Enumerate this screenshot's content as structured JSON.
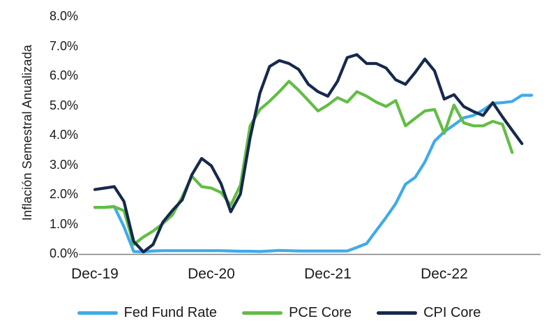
{
  "colors": {
    "background": "#ffffff",
    "axis_line": "#7f7f7f",
    "text": "#1a1a1a",
    "fed_fund_rate": "#3fabe8",
    "pce_core": "#63bd45",
    "cpi_core": "#16294d"
  },
  "chart_data": {
    "type": "line",
    "title": "",
    "xlabel": "",
    "ylabel": "Inflación Semestral Anualizada",
    "grid": false,
    "legend_position": "bottom",
    "ylim": [
      0,
      8
    ],
    "y_ticks": [
      "0.0%",
      "1.0%",
      "2.0%",
      "3.0%",
      "4.0%",
      "5.0%",
      "6.0%",
      "7.0%",
      "8.0%"
    ],
    "x_ticks": [
      {
        "label": "Dec-19",
        "month_index": 0
      },
      {
        "label": "Dec-20",
        "month_index": 12
      },
      {
        "label": "Dec-21",
        "month_index": 24
      },
      {
        "label": "Dec-22",
        "month_index": 36
      }
    ],
    "x_unit": "month",
    "months": [
      "Dec-19",
      "Jan-20",
      "Feb-20",
      "Mar-20",
      "Apr-20",
      "May-20",
      "Jun-20",
      "Jul-20",
      "Aug-20",
      "Sep-20",
      "Oct-20",
      "Nov-20",
      "Dec-20",
      "Jan-21",
      "Feb-21",
      "Mar-21",
      "Apr-21",
      "May-21",
      "Jun-21",
      "Jul-21",
      "Aug-21",
      "Sep-21",
      "Oct-21",
      "Nov-21",
      "Dec-21",
      "Jan-22",
      "Feb-22",
      "Mar-22",
      "Apr-22",
      "May-22",
      "Jun-22",
      "Jul-22",
      "Aug-22",
      "Sep-22",
      "Oct-22",
      "Nov-22",
      "Dec-22",
      "Jan-23",
      "Feb-23",
      "Mar-23",
      "Apr-23",
      "May-23",
      "Jun-23",
      "Jul-23",
      "Aug-23",
      "Sep-23"
    ],
    "series": [
      {
        "name": "Fed Fund Rate",
        "color": "#3fabe8",
        "values": [
          1.55,
          1.55,
          1.58,
          0.9,
          0.06,
          0.05,
          0.08,
          0.09,
          0.09,
          0.09,
          0.09,
          0.09,
          0.09,
          0.09,
          0.08,
          0.07,
          0.07,
          0.06,
          0.08,
          0.1,
          0.09,
          0.08,
          0.08,
          0.08,
          0.08,
          0.08,
          0.08,
          0.2,
          0.33,
          0.77,
          1.21,
          1.68,
          2.33,
          2.56,
          3.08,
          3.78,
          4.1,
          4.33,
          4.57,
          4.65,
          4.83,
          5.06,
          5.08,
          5.12,
          5.33,
          5.33
        ]
      },
      {
        "name": "PCE Core",
        "color": "#63bd45",
        "values": [
          1.55,
          1.55,
          1.57,
          1.44,
          0.3,
          0.55,
          0.75,
          1.0,
          1.3,
          1.9,
          2.6,
          2.25,
          2.2,
          2.05,
          1.62,
          2.3,
          4.3,
          4.85,
          5.13,
          5.45,
          5.8,
          5.5,
          5.15,
          4.8,
          5.0,
          5.25,
          5.1,
          5.45,
          5.3,
          5.1,
          4.95,
          5.15,
          4.3,
          4.55,
          4.8,
          4.85,
          4.05,
          5.0,
          4.4,
          4.3,
          4.3,
          4.45,
          4.35,
          3.4
        ]
      },
      {
        "name": "CPI Core",
        "color": "#16294d",
        "values": [
          2.15,
          2.2,
          2.25,
          1.75,
          0.4,
          0.05,
          0.3,
          1.05,
          1.45,
          1.8,
          2.65,
          3.2,
          2.95,
          2.35,
          1.4,
          2.0,
          3.9,
          5.4,
          6.3,
          6.5,
          6.4,
          6.2,
          5.7,
          5.45,
          5.3,
          5.8,
          6.6,
          6.7,
          6.4,
          6.4,
          6.25,
          5.85,
          5.7,
          6.1,
          6.55,
          6.15,
          5.2,
          5.35,
          4.95,
          4.78,
          4.65,
          5.08,
          4.6,
          4.15,
          3.7
        ]
      }
    ]
  }
}
